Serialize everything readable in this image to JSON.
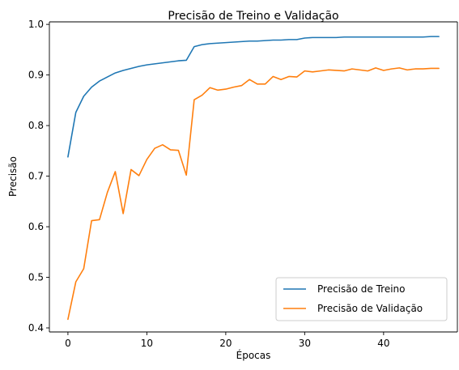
{
  "chart_data": {
    "type": "line",
    "title": "Precisão de Treino e Validação",
    "xlabel": "Épocas",
    "ylabel": "Precisão",
    "xlim": [
      -2.35,
      49.35
    ],
    "ylim": [
      0.392,
      1.005
    ],
    "xticks": [
      0,
      10,
      20,
      30,
      40
    ],
    "yticks": [
      0.4,
      0.5,
      0.6,
      0.7,
      0.8,
      0.9,
      1.0
    ],
    "ytick_labels": [
      "0.4",
      "0.5",
      "0.6",
      "0.7",
      "0.8",
      "0.9",
      "1.0"
    ],
    "grid": false,
    "legend_position": "lower-right",
    "x": [
      0,
      1,
      2,
      3,
      4,
      5,
      6,
      7,
      8,
      9,
      10,
      11,
      12,
      13,
      14,
      15,
      16,
      17,
      18,
      19,
      20,
      21,
      22,
      23,
      24,
      25,
      26,
      27,
      28,
      29,
      30,
      31,
      32,
      33,
      34,
      35,
      36,
      37,
      38,
      39,
      40,
      41,
      42,
      43,
      44,
      45,
      46,
      47
    ],
    "series": [
      {
        "name": "Precisão de Treino",
        "color": "#1f77b4",
        "values": [
          0.738,
          0.826,
          0.858,
          0.876,
          0.888,
          0.896,
          0.904,
          0.909,
          0.913,
          0.917,
          0.92,
          0.922,
          0.924,
          0.926,
          0.928,
          0.929,
          0.956,
          0.96,
          0.962,
          0.963,
          0.964,
          0.965,
          0.966,
          0.967,
          0.967,
          0.968,
          0.969,
          0.969,
          0.97,
          0.97,
          0.973,
          0.974,
          0.974,
          0.974,
          0.974,
          0.975,
          0.975,
          0.975,
          0.975,
          0.975,
          0.975,
          0.975,
          0.975,
          0.975,
          0.975,
          0.975,
          0.976,
          0.976
        ]
      },
      {
        "name": "Precisão de Validação",
        "color": "#ff7f0e",
        "values": [
          0.417,
          0.491,
          0.517,
          0.612,
          0.614,
          0.668,
          0.709,
          0.626,
          0.713,
          0.701,
          0.733,
          0.755,
          0.762,
          0.752,
          0.751,
          0.702,
          0.851,
          0.86,
          0.875,
          0.87,
          0.872,
          0.876,
          0.879,
          0.891,
          0.882,
          0.882,
          0.897,
          0.891,
          0.897,
          0.896,
          0.908,
          0.906,
          0.908,
          0.91,
          0.909,
          0.908,
          0.912,
          0.91,
          0.908,
          0.914,
          0.909,
          0.912,
          0.914,
          0.91,
          0.912,
          0.912,
          0.913,
          0.913
        ]
      }
    ]
  }
}
